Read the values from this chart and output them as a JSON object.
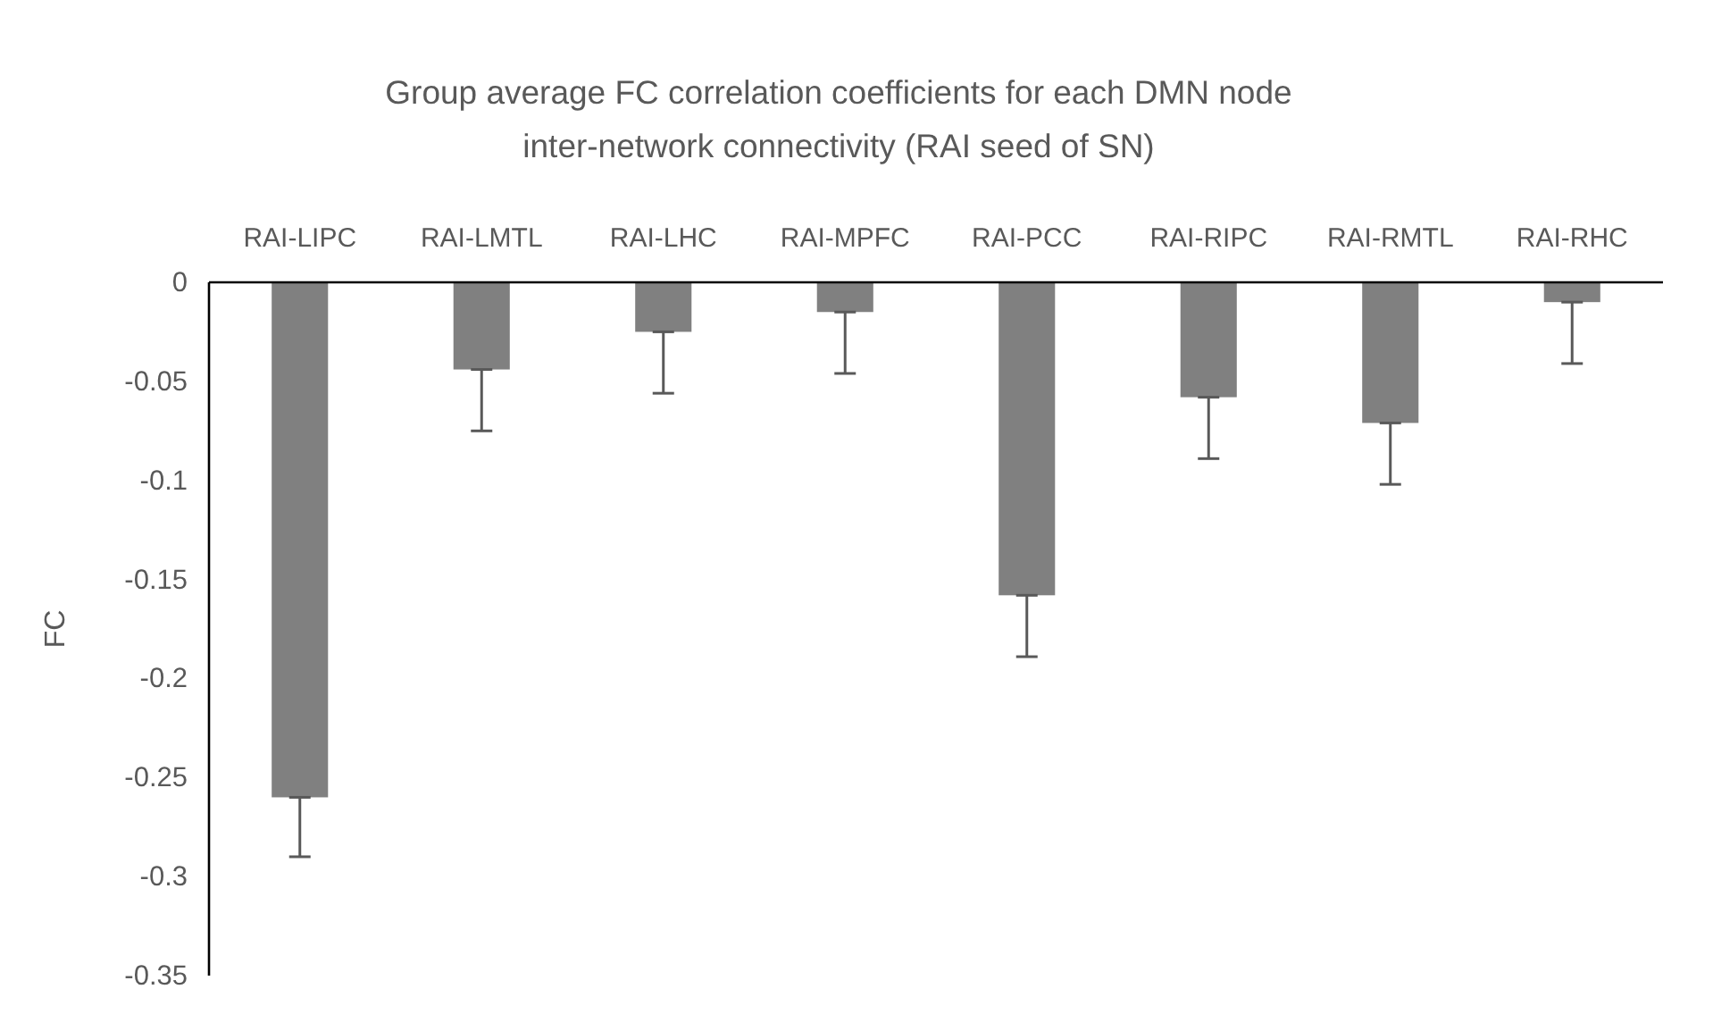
{
  "chart_data": {
    "type": "bar",
    "title": "Group average FC correlation coefficients for each DMN node inter-network connectivity (RAI seed of SN)",
    "ylabel": "FC",
    "categories": [
      "RAI-LIPC",
      "RAI-LMTL",
      "RAI-LHC",
      "RAI-MPFC",
      "RAI-PCC",
      "RAI-RIPC",
      "RAI-RMTL",
      "RAI-RHC"
    ],
    "values": [
      -0.26,
      -0.044,
      -0.025,
      -0.015,
      -0.158,
      -0.058,
      -0.071,
      -0.01
    ],
    "errors": [
      [
        -0.29,
        -0.26
      ],
      [
        -0.075,
        -0.044
      ],
      [
        -0.056,
        -0.025
      ],
      [
        -0.046,
        -0.015
      ],
      [
        -0.189,
        -0.158
      ],
      [
        -0.089,
        -0.058
      ],
      [
        -0.102,
        -0.071
      ],
      [
        -0.041,
        -0.01
      ]
    ],
    "color": "#808080",
    "ylim": [
      -0.35,
      0
    ],
    "yticks": [
      0,
      -0.05,
      -0.1,
      -0.15,
      -0.2,
      -0.25,
      -0.3,
      -0.35
    ],
    "grid": false
  }
}
